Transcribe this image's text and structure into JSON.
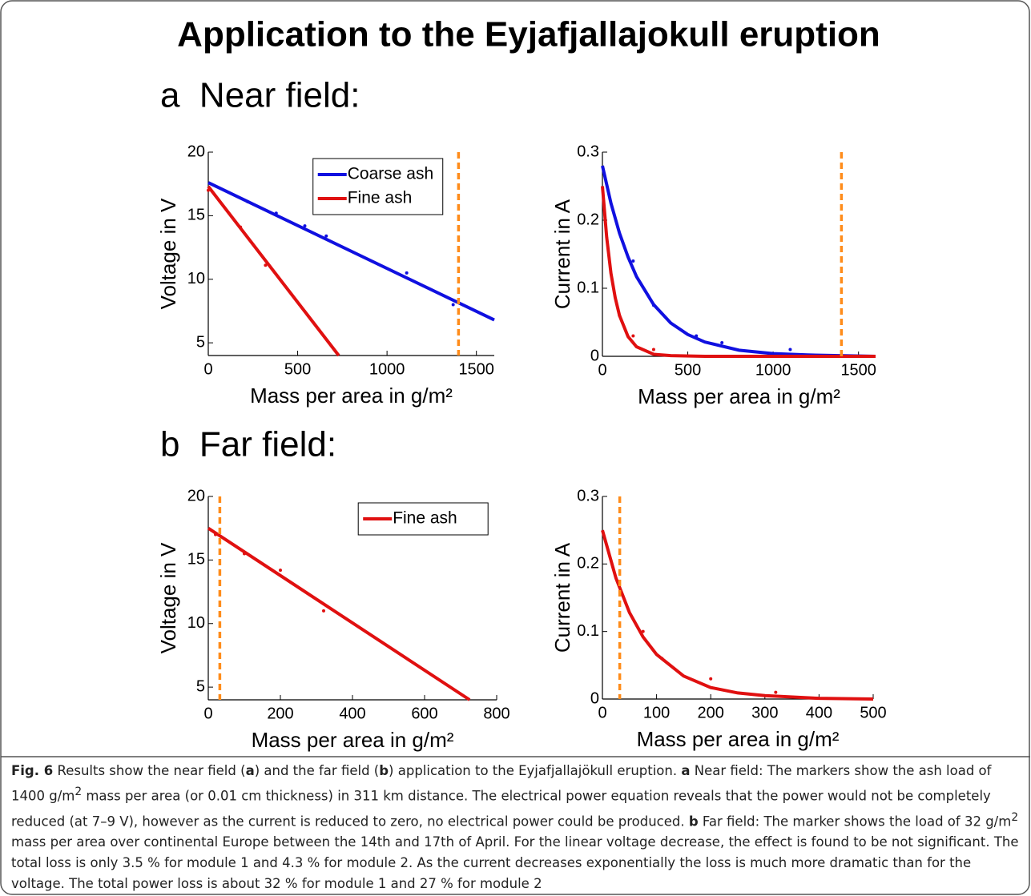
{
  "title": "Application to the Eyjafjallajokull eruption",
  "sections": [
    "a  Near field:",
    "b  Far field:"
  ],
  "caption": [
    "Fig. 6",
    " Results show the near field (",
    "a",
    ") and the far field (",
    "b",
    ") application to the Eyjafjallajökull eruption. ",
    "a",
    " Near field: The markers show the ash load of 1400 g/m",
    "2",
    " mass per area (or 0.01 cm thickness) in 311 km distance. The electrical power equation reveals that the power would not be completely reduced (at 7–9 V), however as the current is reduced to zero, no electrical power could be produced. ",
    "b",
    " Far field: The marker shows the load of 32 g/m",
    "2",
    " mass per area over continental Europe between the 14th and 17th of April. For the linear voltage decrease, the effect is found to be not significant. The total loss is only 3.5 % for module 1 and 4.3 % for module 2. As the current decreases exponentially the loss is much more dramatic than for the voltage. The total power loss is about 32 % for module 1 and 27 % for module 2"
  ],
  "chart_data": [
    {
      "type": "line",
      "xlabel": "Mass per area in g/m²",
      "ylabel": "Voltage in V",
      "xlim": [
        0,
        1600
      ],
      "xticks": [
        0,
        500,
        1000,
        1500
      ],
      "ylim": [
        4,
        20
      ],
      "yticks": [
        5,
        10,
        15,
        20
      ],
      "legend": "upper right",
      "vline": 1400,
      "vline_color": "#ff8c1a",
      "series": [
        {
          "name": "Coarse ash",
          "color": "#1010e0",
          "x": [
            0,
            1600
          ],
          "values": [
            17.6,
            6.8
          ],
          "points_x": [
            220,
            380,
            540,
            660,
            1110,
            1370
          ],
          "points_y": [
            16.1,
            15.2,
            14.2,
            13.4,
            10.5,
            8.0
          ]
        },
        {
          "name": "Fine ash",
          "color": "#e01010",
          "x": [
            0,
            730
          ],
          "values": [
            17.3,
            4
          ],
          "points_x": [
            0,
            180,
            320
          ],
          "points_y": [
            17.0,
            14.1,
            11.1
          ]
        }
      ]
    },
    {
      "type": "line",
      "xlabel": "Mass per area in g/m²",
      "ylabel": "Current in A",
      "xlim": [
        0,
        1600
      ],
      "xticks": [
        0,
        500,
        1000,
        1500
      ],
      "ylim": [
        0,
        0.3
      ],
      "yticks": [
        0,
        0.1,
        0.2,
        0.3
      ],
      "vline": 1400,
      "vline_color": "#ff8c1a",
      "series": [
        {
          "color": "#1010e0",
          "x": [
            0,
            50,
            100,
            150,
            200,
            300,
            400,
            500,
            600,
            800,
            1000,
            1200,
            1600
          ],
          "values": [
            0.28,
            0.225,
            0.181,
            0.146,
            0.117,
            0.076,
            0.049,
            0.032,
            0.021,
            0.009,
            0.004,
            0.002,
            0.0
          ],
          "points_x": [
            180,
            300,
            550,
            700,
            1100
          ],
          "points_y": [
            0.14,
            0.075,
            0.03,
            0.02,
            0.01
          ]
        },
        {
          "color": "#e01010",
          "x": [
            0,
            25,
            50,
            75,
            100,
            150,
            200,
            300,
            400,
            600,
            1600
          ],
          "values": [
            0.25,
            0.175,
            0.122,
            0.086,
            0.06,
            0.029,
            0.014,
            0.003,
            0.001,
            0.0,
            0.0
          ],
          "points_x": [
            100,
            180,
            300
          ],
          "points_y": [
            0.06,
            0.03,
            0.01
          ]
        }
      ]
    },
    {
      "type": "line",
      "xlabel": "Mass per area in g/m²",
      "ylabel": "Voltage in V",
      "xlim": [
        0,
        800
      ],
      "xticks": [
        0,
        200,
        400,
        600,
        800
      ],
      "ylim": [
        4,
        20
      ],
      "yticks": [
        5,
        10,
        15,
        20
      ],
      "legend": "upper right",
      "vline": 32,
      "vline_color": "#ff8c1a",
      "series": [
        {
          "name": "Fine ash",
          "color": "#e01010",
          "x": [
            0,
            725
          ],
          "values": [
            17.5,
            4
          ],
          "points_x": [
            20,
            100,
            200,
            320
          ],
          "points_y": [
            17.0,
            15.5,
            14.2,
            11.0
          ]
        }
      ]
    },
    {
      "type": "line",
      "xlabel": "Mass per area in g/m²",
      "ylabel": "Current in A",
      "xlim": [
        0,
        500
      ],
      "xticks": [
        0,
        100,
        200,
        300,
        400,
        500
      ],
      "ylim": [
        0,
        0.3
      ],
      "yticks": [
        0,
        0.1,
        0.2,
        0.3
      ],
      "vline": 32,
      "vline_color": "#ff8c1a",
      "series": [
        {
          "color": "#e01010",
          "x": [
            0,
            25,
            50,
            75,
            100,
            150,
            200,
            250,
            300,
            400,
            500
          ],
          "values": [
            0.25,
            0.179,
            0.128,
            0.092,
            0.066,
            0.034,
            0.017,
            0.009,
            0.005,
            0.001,
            0.0
          ],
          "points_x": [
            75,
            110,
            200,
            320
          ],
          "points_y": [
            0.1,
            0.06,
            0.03,
            0.01
          ]
        }
      ]
    }
  ]
}
